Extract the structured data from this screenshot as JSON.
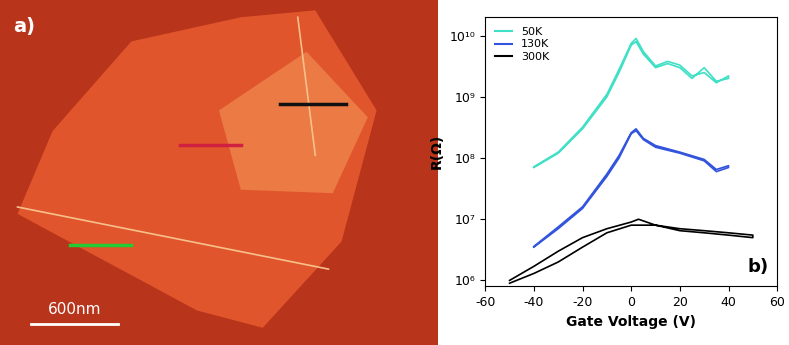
{
  "chart_data": [
    {
      "type": "image",
      "panel_label": "a)",
      "scale_bar": "600nm"
    },
    {
      "type": "line",
      "panel_label": "b)",
      "x_label": "Gate Voltage (V)",
      "y_label": "R(Ω)",
      "log": "y",
      "legend": "upper left",
      "xlim": [
        -60,
        60
      ],
      "xticks": [
        -60,
        -40,
        -20,
        0,
        20,
        40,
        60
      ],
      "ylim": [
        800000,
        20000000000
      ],
      "yticks": [
        {
          "value": 1000000,
          "label": "10⁶"
        },
        {
          "value": 10000000,
          "label": "10⁷"
        },
        {
          "value": 100000000,
          "label": "10⁸"
        },
        {
          "value": 1000000000,
          "label": "10⁹"
        },
        {
          "value": 10000000000,
          "label": "10¹⁰"
        }
      ],
      "series": [
        {
          "name": "50K",
          "color": "#3fe0c5",
          "x": [
            -40,
            -30,
            -20,
            -10,
            -5,
            0,
            2,
            5,
            10,
            15,
            20,
            25,
            30,
            35,
            40,
            40,
            35,
            30,
            25,
            20,
            15,
            10,
            5,
            2,
            0,
            -5,
            -10,
            -20,
            -30,
            -40
          ],
          "values": [
            70000000,
            120000000,
            300000000,
            1000000000,
            2500000000,
            7000000000,
            8000000000,
            5000000000,
            3000000000,
            3500000000,
            3000000000,
            2000000000,
            3000000000,
            1800000000,
            2000000000,
            2200000000,
            1700000000,
            2500000000,
            2200000000,
            3300000000,
            3800000000,
            3200000000,
            5500000000,
            9000000000,
            7500000000,
            2800000000,
            1100000000,
            320000000,
            125000000,
            72000000
          ]
        },
        {
          "name": "130K",
          "color": "#3355dd",
          "x": [
            -40,
            -30,
            -20,
            -10,
            -5,
            0,
            2,
            5,
            10,
            20,
            30,
            35,
            40,
            40,
            35,
            30,
            20,
            10,
            5,
            2,
            0,
            -5,
            -10,
            -20,
            -30,
            -40
          ],
          "values": [
            3500000,
            7000000,
            15000000,
            50000000,
            100000000,
            250000000,
            280000000,
            200000000,
            150000000,
            120000000,
            90000000,
            60000000,
            70000000,
            75000000,
            65000000,
            95000000,
            125000000,
            160000000,
            210000000,
            300000000,
            260000000,
            110000000,
            55000000,
            16000000,
            7500000,
            3600000
          ]
        },
        {
          "name": "300K",
          "color": "#000000",
          "x": [
            -50,
            -40,
            -30,
            -20,
            -10,
            0,
            10,
            20,
            30,
            40,
            50,
            50,
            40,
            30,
            20,
            10,
            3,
            0,
            -10,
            -20,
            -30,
            -40,
            -50
          ],
          "values": [
            900000,
            1300000,
            2000000,
            3500000,
            6000000,
            8000000,
            8000000,
            6500000,
            6000000,
            5500000,
            5000000,
            5500000,
            6000000,
            6500000,
            7000000,
            8000000,
            10000000,
            9000000,
            7000000,
            5000000,
            3000000,
            1700000,
            1000000
          ]
        }
      ]
    }
  ]
}
